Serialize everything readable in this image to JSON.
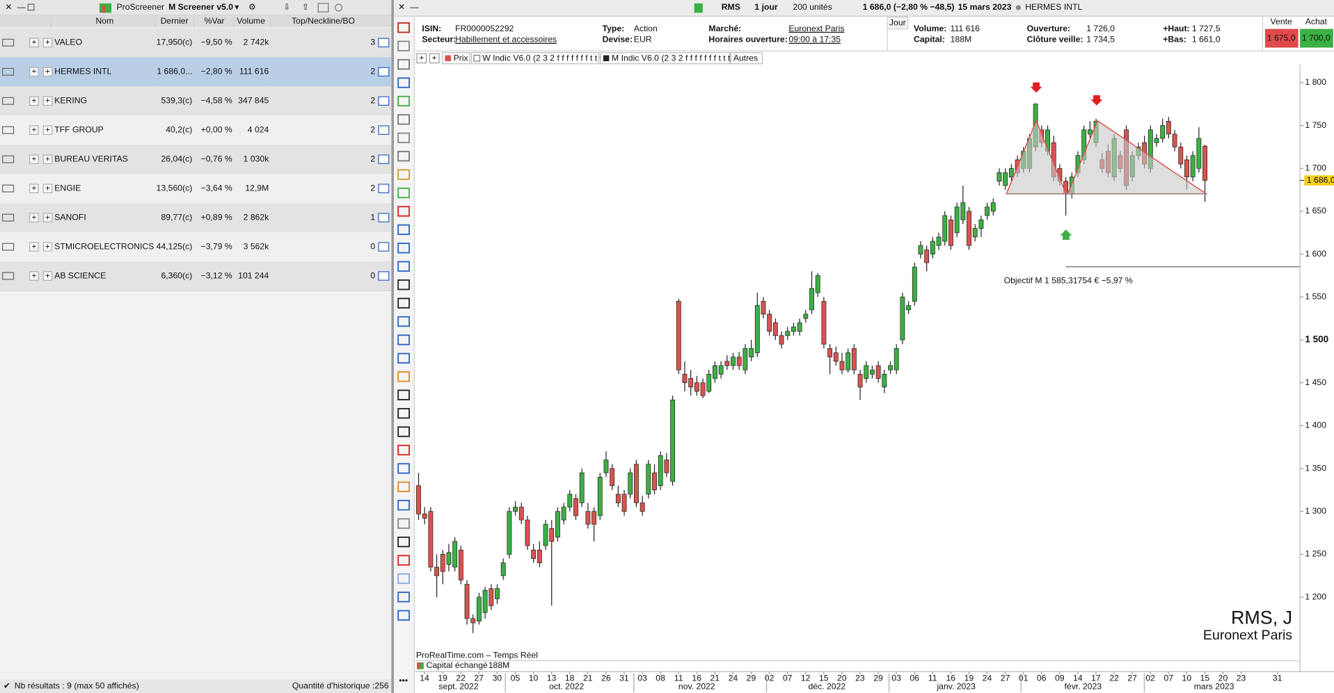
{
  "screener": {
    "toolbar": [
      "ProScreener",
      "M Screener v5.0"
    ],
    "columns": [
      "Nom",
      "Dernier",
      "%Var",
      "Volume",
      "Top/Neckline/BO"
    ],
    "rows": [
      {
        "name": "VALEO",
        "last": "17,950(c)",
        "change": "−9,50 %",
        "volume": "2 742k",
        "top": 3,
        "color": "#b0231d"
      },
      {
        "name": "HERMES INTL",
        "last": "1 686,0...",
        "change": "−2,80 %",
        "volume": "111 616",
        "top": 2,
        "color": "#b0231d"
      },
      {
        "name": "KERING",
        "last": "539,3(c)",
        "change": "−4,58 %",
        "volume": "347 845",
        "top": 2,
        "color": "#b0231d"
      },
      {
        "name": "TFF GROUP",
        "last": "40,2(c)",
        "change": "+0,00 %",
        "volume": "4 024",
        "top": 2,
        "color": "#111111"
      },
      {
        "name": "BUREAU VERITAS",
        "last": "26,04(c)",
        "change": "−0,76 %",
        "volume": "1 030k",
        "top": 2,
        "color": "#b0231d"
      },
      {
        "name": "ENGIE",
        "last": "13,560(c)",
        "change": "−3,64 %",
        "volume": "12,9M",
        "top": 2,
        "color": "#b0231d"
      },
      {
        "name": "SANOFI",
        "last": "89,77(c)",
        "change": "+0,89 %",
        "volume": "2 862k",
        "top": 1,
        "color": "#2e8b2e"
      },
      {
        "name": "STMICROELECTRONICS",
        "last": "44,125(c)",
        "change": "−3,79 %",
        "volume": "3 562k",
        "top": 0,
        "color": "#b0231d"
      },
      {
        "name": "AB SCIENCE",
        "last": "6,360(c)",
        "change": "−3,12 %",
        "volume": "101 244",
        "top": 0,
        "color": "#b0231d"
      }
    ],
    "status": "Nb résultats : 9 (max 50 affichés)",
    "history": "Quantité d'historique :256"
  },
  "toolbar": {
    "symbol": "RMS",
    "period": "1 jour",
    "units": "200 unités",
    "quote": "1 686,0 (−2,80 % −48,5)",
    "date": "15 mars 2023",
    "name": "HERMES INTL"
  },
  "info": {
    "fields": [
      {
        "label": "ISIN:",
        "value": "FR0000052292"
      },
      {
        "label": "Secteur:",
        "value": "Habillement et accessoires",
        "link": true
      },
      {
        "label": "Type:",
        "value": "Action"
      },
      {
        "label": "Devise:",
        "value": "EUR"
      },
      {
        "label": "Marché:",
        "value": "Euronext Paris",
        "link": true
      },
      {
        "label": "Horaires ouverture:",
        "value": "09:00 à 17:35",
        "link": true
      },
      {
        "label": "Volume:",
        "value": "111 616"
      },
      {
        "label": "Capital:",
        "value": "188M"
      },
      {
        "label": "Ouverture:",
        "value": "1 726,0"
      },
      {
        "label": "Clôture veille:",
        "value": "1 734,5"
      },
      {
        "label": "+Haut:",
        "value": "1 727,5"
      },
      {
        "label": "+Bas:",
        "value": "1 661,0"
      }
    ],
    "tab": "Jour",
    "sell_label": "Vente",
    "sell": "1 675,0",
    "buy_label": "Achat",
    "buy": "1 700,0"
  },
  "legend": [
    "Prix",
    "W Indic V6.0 (2 3 2 f f f f f f f t t t)",
    "M Indic V6.0 (2 3 2 f f f f f f f t t t)",
    "Autres"
  ],
  "chart_data": {
    "type": "candlestick",
    "up_color": "#3cb043",
    "down_color": "#d9534f",
    "ylim": [
      1113,
      1821
    ],
    "yticks": [
      {
        "value": 1200,
        "label": "1 200"
      },
      {
        "value": 1250,
        "label": "1 250"
      },
      {
        "value": 1300,
        "label": "1 300"
      },
      {
        "value": 1350,
        "label": "1 350"
      },
      {
        "value": 1400,
        "label": "1 400"
      },
      {
        "value": 1450,
        "label": "1 450"
      },
      {
        "value": 1500,
        "label": "1 500"
      },
      {
        "value": 1550,
        "label": "1 550"
      },
      {
        "value": 1600,
        "label": "1 600"
      },
      {
        "value": 1650,
        "label": "1 650"
      },
      {
        "value": 1700,
        "label": "1 700"
      },
      {
        "value": 1750,
        "label": "1 750"
      },
      {
        "value": 1800,
        "label": "1 800"
      }
    ],
    "last": {
      "value": 1686,
      "label": "1 686,0"
    },
    "objective": {
      "value": 1585.31754,
      "label": "Objectif M 1 585,31754 € −5,97 %"
    },
    "xtick_labels": [
      "14",
      "19",
      "22",
      "27",
      "30",
      "05",
      "10",
      "13",
      "18",
      "21",
      "26",
      "31",
      "03",
      "08",
      "11",
      "16",
      "21",
      "24",
      "29",
      "02",
      "07",
      "12",
      "15",
      "20",
      "23",
      "29",
      "03",
      "06",
      "11",
      "16",
      "19",
      "24",
      "27",
      "01",
      "06",
      "09",
      "14",
      "17",
      "22",
      "27",
      "02",
      "07",
      "10",
      "15",
      "20",
      "23",
      "31"
    ],
    "months": [
      "sept. 2022",
      "oct. 2022",
      "nov. 2022",
      "déc. 2022",
      "janv. 2023",
      "févr. 2023",
      "mars 2023"
    ],
    "watermark": [
      "RMS, J",
      "Euronext Paris"
    ],
    "source": "ProRealTime.com – Temps Réel",
    "volume_label": "Capital échangé",
    "volume_value": "188M",
    "candles": [
      [
        1330,
        1345,
        1290,
        1297
      ],
      [
        1297,
        1305,
        1285,
        1292
      ],
      [
        1300,
        1305,
        1230,
        1235
      ],
      [
        1235,
        1250,
        1200,
        1225
      ],
      [
        1250,
        1255,
        1215,
        1230
      ],
      [
        1238,
        1262,
        1230,
        1252
      ],
      [
        1235,
        1270,
        1230,
        1265
      ],
      [
        1255,
        1260,
        1215,
        1220
      ],
      [
        1215,
        1220,
        1168,
        1175
      ],
      [
        1175,
        1180,
        1158,
        1170
      ],
      [
        1172,
        1205,
        1168,
        1200
      ],
      [
        1182,
        1212,
        1175,
        1208
      ],
      [
        1210,
        1215,
        1185,
        1190
      ],
      [
        1198,
        1215,
        1192,
        1210
      ],
      [
        1225,
        1245,
        1220,
        1240
      ],
      [
        1250,
        1305,
        1245,
        1300
      ],
      [
        1300,
        1312,
        1295,
        1305
      ],
      [
        1305,
        1310,
        1285,
        1290
      ],
      [
        1290,
        1295,
        1255,
        1260
      ],
      [
        1255,
        1262,
        1240,
        1245
      ],
      [
        1255,
        1265,
        1235,
        1240
      ],
      [
        1260,
        1290,
        1255,
        1285
      ],
      [
        1280,
        1290,
        1190,
        1265
      ],
      [
        1270,
        1305,
        1265,
        1300
      ],
      [
        1290,
        1310,
        1285,
        1305
      ],
      [
        1305,
        1325,
        1300,
        1320
      ],
      [
        1315,
        1320,
        1290,
        1295
      ],
      [
        1310,
        1350,
        1305,
        1345
      ],
      [
        1300,
        1310,
        1280,
        1285
      ],
      [
        1300,
        1305,
        1265,
        1285
      ],
      [
        1295,
        1345,
        1290,
        1340
      ],
      [
        1345,
        1370,
        1340,
        1360
      ],
      [
        1350,
        1355,
        1325,
        1330
      ],
      [
        1320,
        1330,
        1305,
        1310
      ],
      [
        1320,
        1325,
        1295,
        1300
      ],
      [
        1320,
        1350,
        1315,
        1345
      ],
      [
        1355,
        1360,
        1305,
        1310
      ],
      [
        1310,
        1318,
        1295,
        1300
      ],
      [
        1320,
        1360,
        1315,
        1355
      ],
      [
        1345,
        1355,
        1320,
        1325
      ],
      [
        1330,
        1370,
        1325,
        1365
      ],
      [
        1360,
        1368,
        1340,
        1345
      ],
      [
        1335,
        1435,
        1330,
        1430
      ],
      [
        1545,
        1548,
        1460,
        1465
      ],
      [
        1460,
        1475,
        1440,
        1450
      ],
      [
        1455,
        1465,
        1435,
        1445
      ],
      [
        1450,
        1458,
        1435,
        1440
      ],
      [
        1450,
        1455,
        1432,
        1435
      ],
      [
        1440,
        1465,
        1438,
        1460
      ],
      [
        1455,
        1475,
        1450,
        1470
      ],
      [
        1460,
        1475,
        1455,
        1470
      ],
      [
        1475,
        1482,
        1465,
        1470
      ],
      [
        1470,
        1485,
        1465,
        1480
      ],
      [
        1480,
        1486,
        1465,
        1470
      ],
      [
        1465,
        1495,
        1460,
        1490
      ],
      [
        1480,
        1500,
        1475,
        1490
      ],
      [
        1485,
        1555,
        1480,
        1540
      ],
      [
        1545,
        1550,
        1525,
        1530
      ],
      [
        1530,
        1535,
        1505,
        1510
      ],
      [
        1520,
        1525,
        1500,
        1505
      ],
      [
        1505,
        1510,
        1490,
        1495
      ],
      [
        1505,
        1515,
        1500,
        1510
      ],
      [
        1510,
        1520,
        1505,
        1515
      ],
      [
        1510,
        1525,
        1505,
        1520
      ],
      [
        1525,
        1535,
        1520,
        1530
      ],
      [
        1535,
        1580,
        1530,
        1560
      ],
      [
        1555,
        1578,
        1550,
        1575
      ],
      [
        1545,
        1550,
        1490,
        1495
      ],
      [
        1490,
        1495,
        1460,
        1480
      ],
      [
        1485,
        1492,
        1470,
        1475
      ],
      [
        1475,
        1485,
        1460,
        1465
      ],
      [
        1465,
        1490,
        1462,
        1485
      ],
      [
        1490,
        1495,
        1460,
        1465
      ],
      [
        1460,
        1465,
        1430,
        1445
      ],
      [
        1455,
        1475,
        1450,
        1470
      ],
      [
        1460,
        1470,
        1455,
        1465
      ],
      [
        1470,
        1475,
        1450,
        1455
      ],
      [
        1445,
        1465,
        1438,
        1460
      ],
      [
        1465,
        1475,
        1460,
        1470
      ],
      [
        1465,
        1495,
        1460,
        1490
      ],
      [
        1500,
        1555,
        1495,
        1550
      ],
      [
        1535,
        1545,
        1530,
        1540
      ],
      [
        1545,
        1590,
        1540,
        1585
      ],
      [
        1600,
        1615,
        1595,
        1610
      ],
      [
        1605,
        1610,
        1580,
        1590
      ],
      [
        1600,
        1620,
        1595,
        1615
      ],
      [
        1610,
        1625,
        1605,
        1620
      ],
      [
        1615,
        1650,
        1610,
        1645
      ],
      [
        1640,
        1645,
        1605,
        1610
      ],
      [
        1625,
        1660,
        1620,
        1655
      ],
      [
        1640,
        1680,
        1635,
        1660
      ],
      [
        1650,
        1655,
        1605,
        1610
      ],
      [
        1620,
        1635,
        1615,
        1630
      ],
      [
        1630,
        1645,
        1620,
        1640
      ],
      [
        1645,
        1660,
        1640,
        1655
      ],
      [
        1650,
        1665,
        1645,
        1660
      ],
      [
        1685,
        1700,
        1680,
        1695
      ],
      [
        1680,
        1700,
        1675,
        1695
      ],
      [
        1690,
        1705,
        1685,
        1700
      ],
      [
        1710,
        1715,
        1690,
        1695
      ],
      [
        1700,
        1725,
        1695,
        1720
      ],
      [
        1700,
        1740,
        1695,
        1735
      ],
      [
        1725,
        1776,
        1720,
        1775
      ],
      [
        1745,
        1750,
        1725,
        1730
      ],
      [
        1720,
        1750,
        1715,
        1745
      ],
      [
        1730,
        1738,
        1685,
        1690
      ],
      [
        1700,
        1705,
        1680,
        1685
      ],
      [
        1685,
        1690,
        1645,
        1670
      ],
      [
        1670,
        1695,
        1665,
        1690
      ],
      [
        1695,
        1720,
        1690,
        1715
      ],
      [
        1710,
        1750,
        1705,
        1745
      ],
      [
        1740,
        1755,
        1735,
        1745
      ],
      [
        1730,
        1758,
        1725,
        1755
      ],
      [
        1710,
        1718,
        1695,
        1700
      ],
      [
        1720,
        1728,
        1690,
        1695
      ],
      [
        1690,
        1740,
        1685,
        1735
      ],
      [
        1715,
        1720,
        1695,
        1700
      ],
      [
        1745,
        1750,
        1675,
        1680
      ],
      [
        1690,
        1720,
        1685,
        1715
      ],
      [
        1715,
        1730,
        1710,
        1725
      ],
      [
        1730,
        1738,
        1700,
        1705
      ],
      [
        1700,
        1750,
        1695,
        1745
      ],
      [
        1730,
        1740,
        1725,
        1735
      ],
      [
        1735,
        1758,
        1730,
        1750
      ],
      [
        1755,
        1760,
        1735,
        1740
      ],
      [
        1740,
        1745,
        1720,
        1725
      ],
      [
        1725,
        1730,
        1700,
        1705
      ],
      [
        1710,
        1715,
        1675,
        1690
      ],
      [
        1690,
        1720,
        1685,
        1715
      ],
      [
        1700,
        1748,
        1695,
        1735
      ],
      [
        1726,
        1727.5,
        1661,
        1686
      ]
    ]
  }
}
